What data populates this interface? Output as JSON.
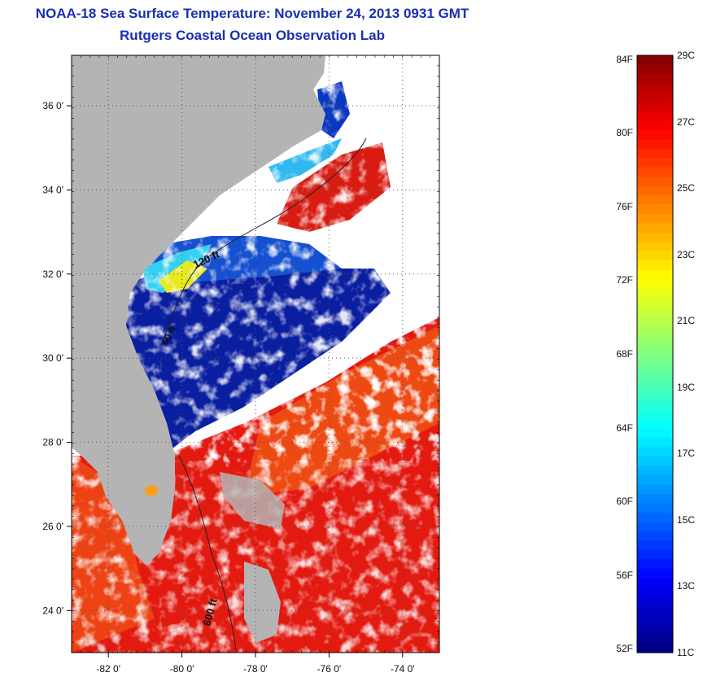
{
  "title": "NOAA-18 Sea Surface Temperature:  November 24, 2013 0931 GMT",
  "subtitle": "Rutgers Coastal Ocean Observation Lab",
  "map": {
    "lat_ticks": [
      {
        "value": 24,
        "label": "24 0'"
      },
      {
        "value": 26,
        "label": "26 0'"
      },
      {
        "value": 28,
        "label": "28 0'"
      },
      {
        "value": 30,
        "label": "30 0'"
      },
      {
        "value": 32,
        "label": "32 0'"
      },
      {
        "value": 34,
        "label": "34 0'"
      },
      {
        "value": 36,
        "label": "36 0'"
      }
    ],
    "lon_ticks": [
      {
        "value": -82,
        "label": "-82 0'"
      },
      {
        "value": -80,
        "label": "-80 0'"
      },
      {
        "value": -78,
        "label": "-78 0'"
      },
      {
        "value": -76,
        "label": "-76 0'"
      },
      {
        "value": -74,
        "label": "-74 0'"
      }
    ],
    "contour_labels": [
      "120 ft",
      "60 ft",
      "600 ft"
    ],
    "land_color": "#b4b4b4",
    "cloud_color": "#ffffff"
  },
  "colorbar": {
    "fahrenheit_labels": [
      "84F",
      "80F",
      "76F",
      "72F",
      "68F",
      "64F",
      "60F",
      "56F",
      "52F"
    ],
    "celsius_labels": [
      "29C",
      "27C",
      "25C",
      "23C",
      "21C",
      "19C",
      "17C",
      "15C",
      "13C",
      "11C"
    ],
    "min_c": 11,
    "max_c": 29
  }
}
